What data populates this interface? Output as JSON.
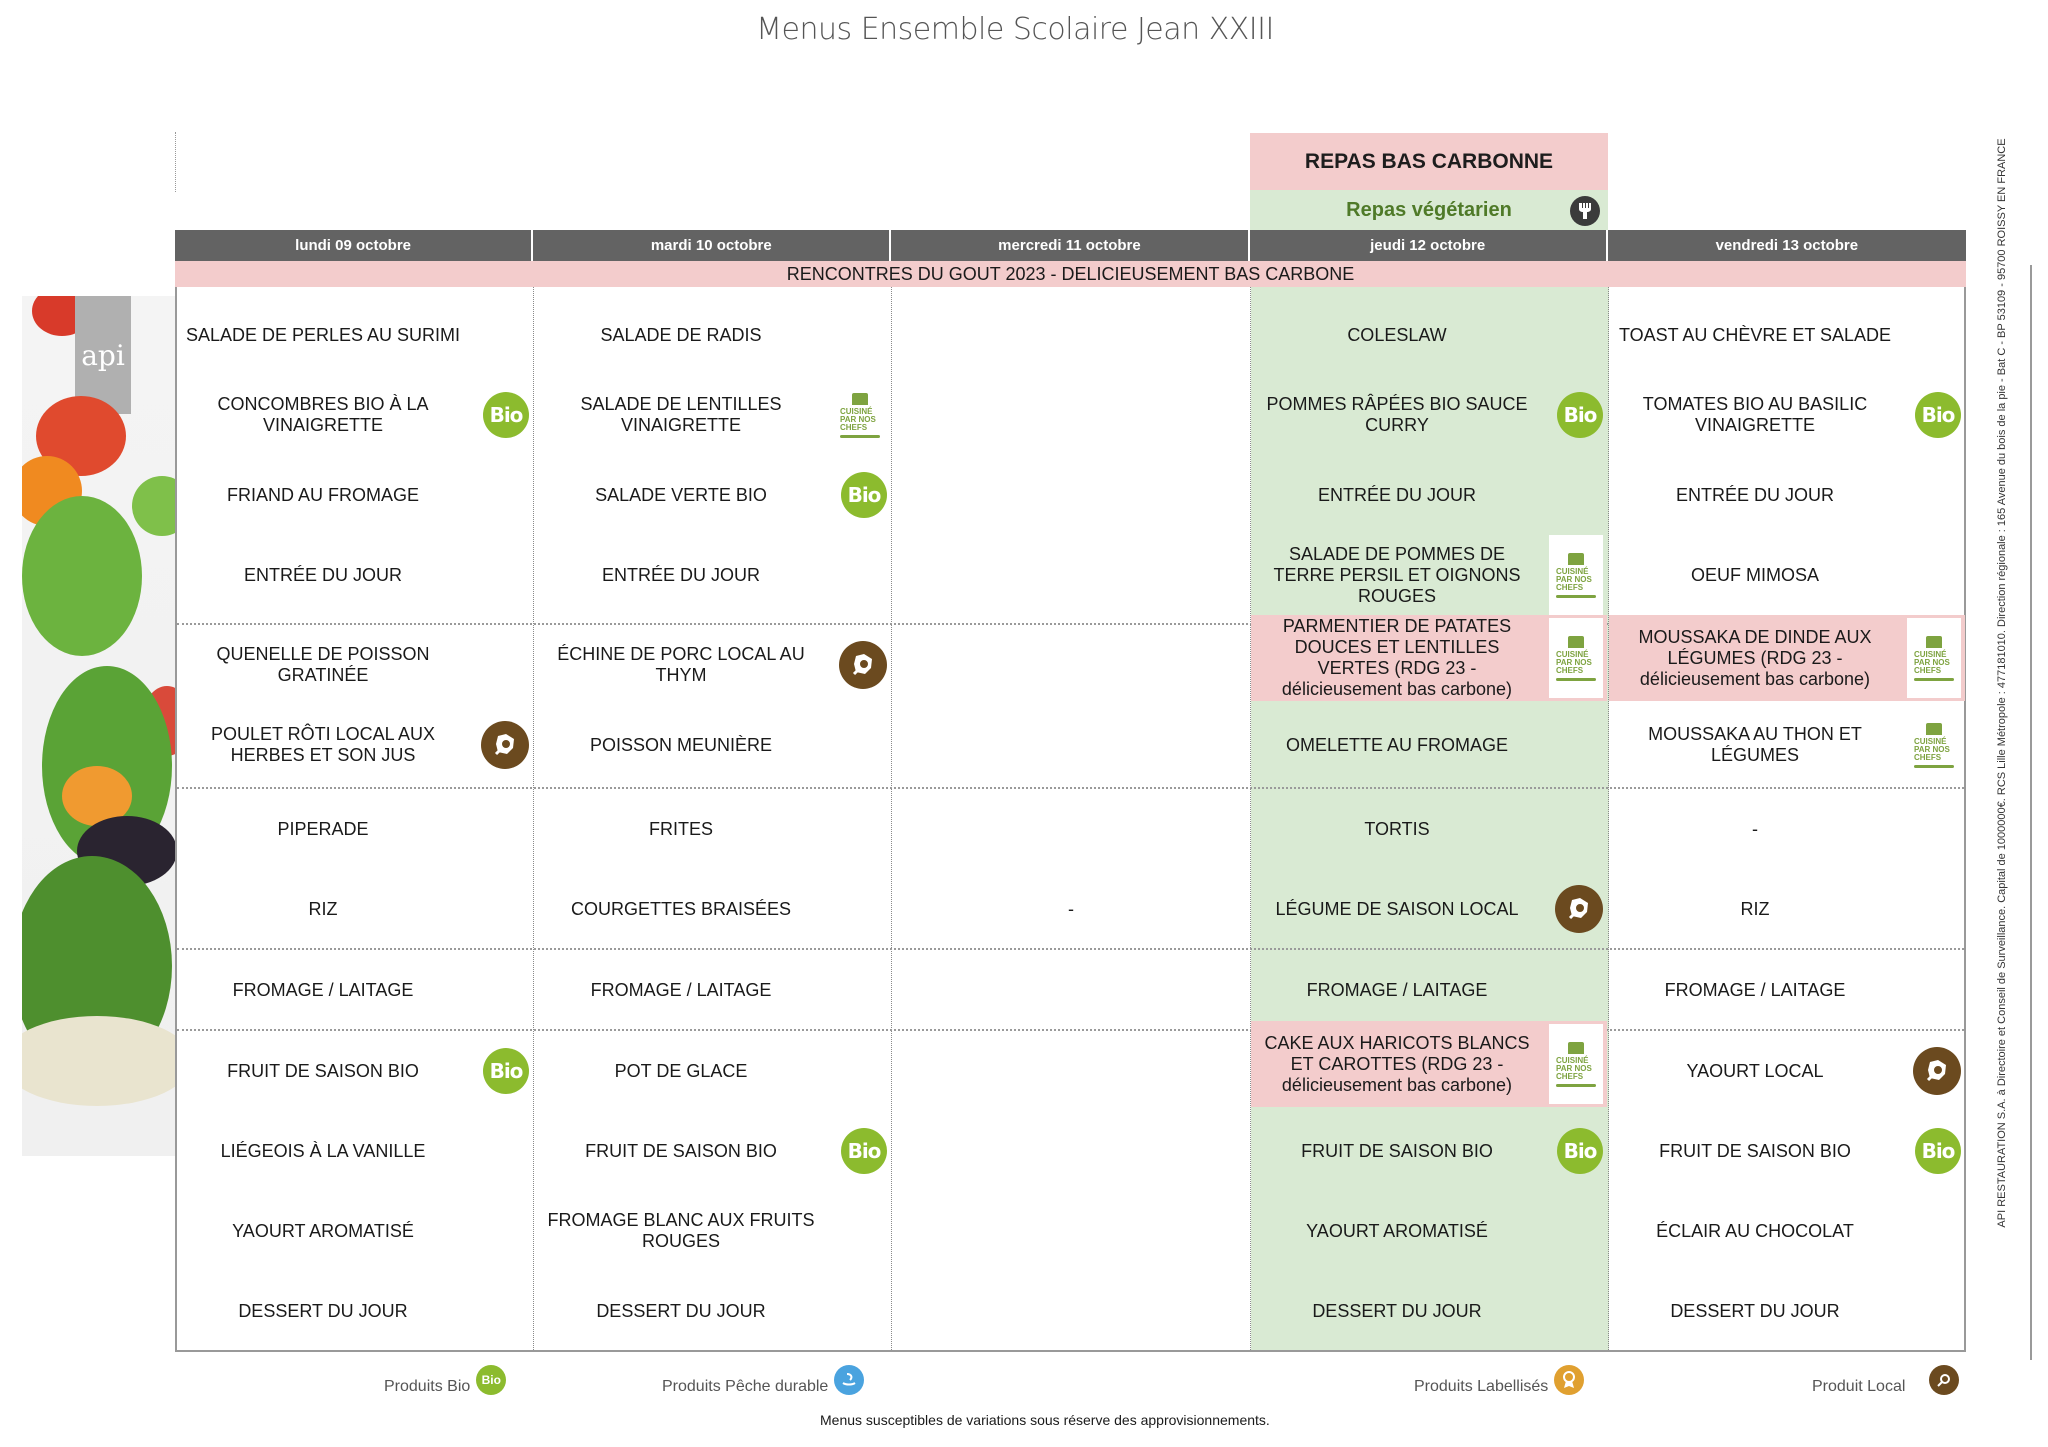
{
  "title": "Menus Ensemble Scolaire Jean XXIII",
  "special": {
    "carbon_label": "REPAS BAS CARBONNE",
    "veg_label": "Repas végétarien",
    "veg_icon": "fork-icon"
  },
  "days": [
    {
      "label": "lundi 09 octobre"
    },
    {
      "label": "mardi 10 octobre"
    },
    {
      "label": "mercredi 11 octobre"
    },
    {
      "label": "jeudi 12 octobre"
    },
    {
      "label": "vendredi 13 octobre"
    }
  ],
  "banner": "RENCONTRES DU GOUT 2023 - DELICIEUSEMENT BAS CARBONE",
  "menu": {
    "lundi": [
      {
        "text": "SALADE DE PERLES AU SURIMI",
        "icon": ""
      },
      {
        "text": "CONCOMBRES BIO À LA VINAIGRETTE",
        "icon": "bio"
      },
      {
        "text": "FRIAND AU FROMAGE",
        "icon": ""
      },
      {
        "text": "ENTRÉE DU JOUR",
        "icon": ""
      },
      {
        "text": "QUENELLE DE POISSON GRATINÉE",
        "icon": ""
      },
      {
        "text": "POULET RÔTI LOCAL AUX HERBES ET SON JUS",
        "icon": "local"
      },
      {
        "text": "PIPERADE",
        "icon": ""
      },
      {
        "text": "RIZ",
        "icon": ""
      },
      {
        "text": "FROMAGE / LAITAGE",
        "icon": ""
      },
      {
        "text": "FRUIT DE SAISON BIO",
        "icon": "bio"
      },
      {
        "text": "LIÉGEOIS À LA VANILLE",
        "icon": ""
      },
      {
        "text": "YAOURT AROMATISÉ",
        "icon": ""
      },
      {
        "text": "DESSERT DU JOUR",
        "icon": ""
      }
    ],
    "mardi": [
      {
        "text": "SALADE DE RADIS",
        "icon": ""
      },
      {
        "text": "SALADE DE LENTILLES VINAIGRETTE",
        "icon": "chef"
      },
      {
        "text": "SALADE VERTE BIO",
        "icon": "bio"
      },
      {
        "text": "ENTRÉE DU JOUR",
        "icon": ""
      },
      {
        "text": "ÉCHINE DE PORC LOCAL AU THYM",
        "icon": "local"
      },
      {
        "text": "POISSON MEUNIÈRE",
        "icon": ""
      },
      {
        "text": "FRITES",
        "icon": ""
      },
      {
        "text": "COURGETTES BRAISÉES",
        "icon": ""
      },
      {
        "text": "FROMAGE / LAITAGE",
        "icon": ""
      },
      {
        "text": "POT DE GLACE",
        "icon": ""
      },
      {
        "text": "FRUIT DE SAISON BIO",
        "icon": "bio"
      },
      {
        "text": "FROMAGE BLANC AUX FRUITS ROUGES",
        "icon": ""
      },
      {
        "text": "DESSERT DU JOUR",
        "icon": ""
      }
    ],
    "mercredi": [
      {
        "text": "-",
        "icon": ""
      }
    ],
    "jeudi": [
      {
        "text": "COLESLAW",
        "icon": ""
      },
      {
        "text": "POMMES RÂPÉES BIO SAUCE CURRY",
        "icon": "bio"
      },
      {
        "text": "ENTRÉE DU JOUR",
        "icon": ""
      },
      {
        "text": "SALADE DE POMMES DE TERRE PERSIL ET OIGNONS ROUGES",
        "icon": "chef"
      },
      {
        "text": "PARMENTIER DE PATATES DOUCES ET LENTILLES VERTES (RDG 23 - délicieusement bas carbone)",
        "icon": "chef",
        "highlight": "pink"
      },
      {
        "text": "OMELETTE AU FROMAGE",
        "icon": ""
      },
      {
        "text": "TORTIS",
        "icon": ""
      },
      {
        "text": "LÉGUME DE SAISON LOCAL",
        "icon": "local"
      },
      {
        "text": "FROMAGE / LAITAGE",
        "icon": ""
      },
      {
        "text": "CAKE AUX HARICOTS BLANCS ET CAROTTES (RDG 23 - délicieusement bas carbone)",
        "icon": "chef",
        "highlight": "pink"
      },
      {
        "text": "FRUIT DE SAISON BIO",
        "icon": "bio"
      },
      {
        "text": "YAOURT AROMATISÉ",
        "icon": ""
      },
      {
        "text": "DESSERT DU JOUR",
        "icon": ""
      }
    ],
    "vendredi": [
      {
        "text": "TOAST AU CHÈVRE ET SALADE",
        "icon": ""
      },
      {
        "text": "TOMATES BIO AU BASILIC VINAIGRETTE",
        "icon": "bio"
      },
      {
        "text": "ENTRÉE DU JOUR",
        "icon": ""
      },
      {
        "text": "OEUF MIMOSA",
        "icon": ""
      },
      {
        "text": "MOUSSAKA DE DINDE AUX LÉGUMES (RDG 23 - délicieusement bas carbone)",
        "icon": "chef",
        "highlight": "pink"
      },
      {
        "text": "MOUSSAKA AU THON ET LÉGUMES",
        "icon": "chef"
      },
      {
        "text": "-",
        "icon": ""
      },
      {
        "text": "RIZ",
        "icon": ""
      },
      {
        "text": "FROMAGE / LAITAGE",
        "icon": ""
      },
      {
        "text": "YAOURT LOCAL",
        "icon": "local"
      },
      {
        "text": "FRUIT DE SAISON BIO",
        "icon": "bio"
      },
      {
        "text": "ÉCLAIR AU CHOCOLAT",
        "icon": ""
      },
      {
        "text": "DESSERT DU JOUR",
        "icon": ""
      }
    ]
  },
  "icons": {
    "bio_text": "Bio",
    "chef_line1": "CUISINÉ",
    "chef_line2": "PAR NOS",
    "chef_line3": "CHEFS"
  },
  "legend": [
    {
      "label": "Produits Bio",
      "icon": "bio-icon",
      "color": "#8cbb2e"
    },
    {
      "label": "Produits Pêche durable",
      "icon": "fish-icon",
      "color": "#4aa3df"
    },
    {
      "label": "Produits Labellisés",
      "icon": "ribbon-icon",
      "color": "#e0a030"
    },
    {
      "label": "Produit Local",
      "icon": "local-icon",
      "color": "#6b4a1f"
    }
  ],
  "footnote": "Menus susceptibles de variations sous réserve des approvisionnements.",
  "legal": "API RESTAURATION S.A. à Directoire et Conseil de Surveillance. Capital de 1000000€. RCS Lille Métropole : 477181010. Direction régionale : 165 Avenue du bois de la pie - Bat C - BP 53109 - 95700 ROISSY EN FRANCE",
  "brand": {
    "logo_text": "api"
  },
  "colors": {
    "header_bg": "#636363",
    "pink": "#f3cccc",
    "green": "#d9ead3",
    "veg_text": "#4f7a28",
    "bio": "#8cbb2e",
    "local": "#6b4a1f"
  }
}
